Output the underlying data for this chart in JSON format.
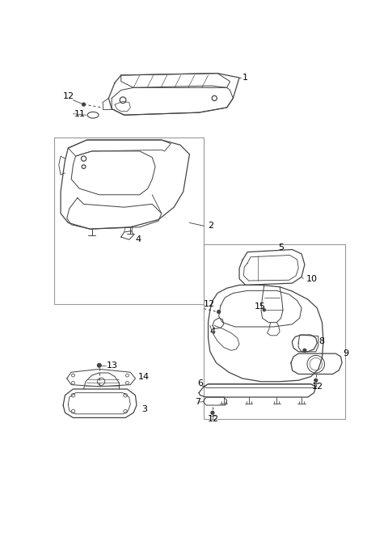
{
  "background_color": "#ffffff",
  "line_color": "#444444",
  "fig_width": 4.8,
  "fig_height": 6.59,
  "dpi": 100,
  "label_fontsize": 7.5,
  "lw": 0.9
}
